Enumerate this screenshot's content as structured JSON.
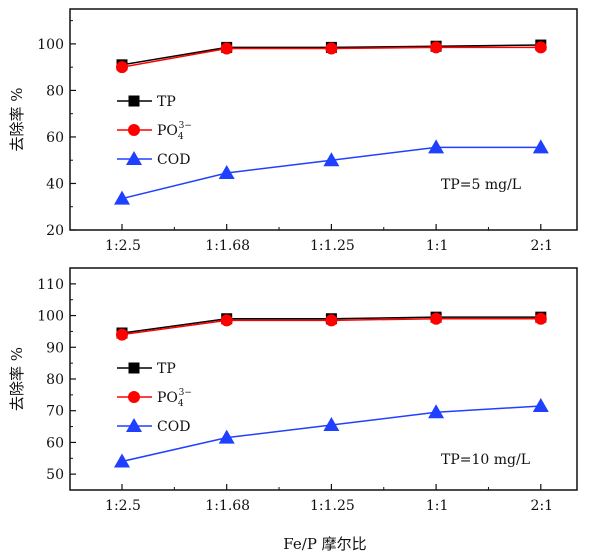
{
  "xlabel": "Fe/P 摩尔比",
  "chart_data": [
    {
      "type": "line",
      "categories": [
        "1:2.5",
        "1:1.68",
        "1:1.25",
        "1:1",
        "2:1"
      ],
      "ylabel": "去除率 %",
      "ylim": [
        20,
        115
      ],
      "yticks": [
        20,
        40,
        60,
        80,
        100
      ],
      "annotation": "TP=5 mg/L",
      "legend": "left",
      "series": [
        {
          "name": "TP",
          "color": "#000000",
          "marker": "square",
          "values": [
            91,
            98.5,
            98.5,
            99,
            99.5
          ]
        },
        {
          "name": "PO4 3-",
          "color": "#ff0000",
          "marker": "circle",
          "values": [
            90,
            98,
            98,
            98.5,
            98.5
          ]
        },
        {
          "name": "COD",
          "color": "#2040ff",
          "marker": "triangle",
          "values": [
            33.5,
            44.5,
            50,
            55.5,
            55.5
          ]
        }
      ]
    },
    {
      "type": "line",
      "categories": [
        "1:2.5",
        "1:1.68",
        "1:1.25",
        "1:1",
        "2:1"
      ],
      "ylabel": "去除率 %",
      "ylim": [
        45,
        115
      ],
      "yticks": [
        50,
        60,
        70,
        80,
        90,
        100,
        110
      ],
      "annotation": "TP=10 mg/L",
      "legend": "left",
      "series": [
        {
          "name": "TP",
          "color": "#000000",
          "marker": "square",
          "values": [
            94.5,
            99,
            99,
            99.5,
            99.5
          ]
        },
        {
          "name": "PO4 3-",
          "color": "#ff0000",
          "marker": "circle",
          "values": [
            94,
            98.5,
            98.5,
            99,
            99
          ]
        },
        {
          "name": "COD",
          "color": "#2040ff",
          "marker": "triangle",
          "values": [
            54,
            61.5,
            65.5,
            69.5,
            71.5
          ]
        }
      ]
    }
  ]
}
